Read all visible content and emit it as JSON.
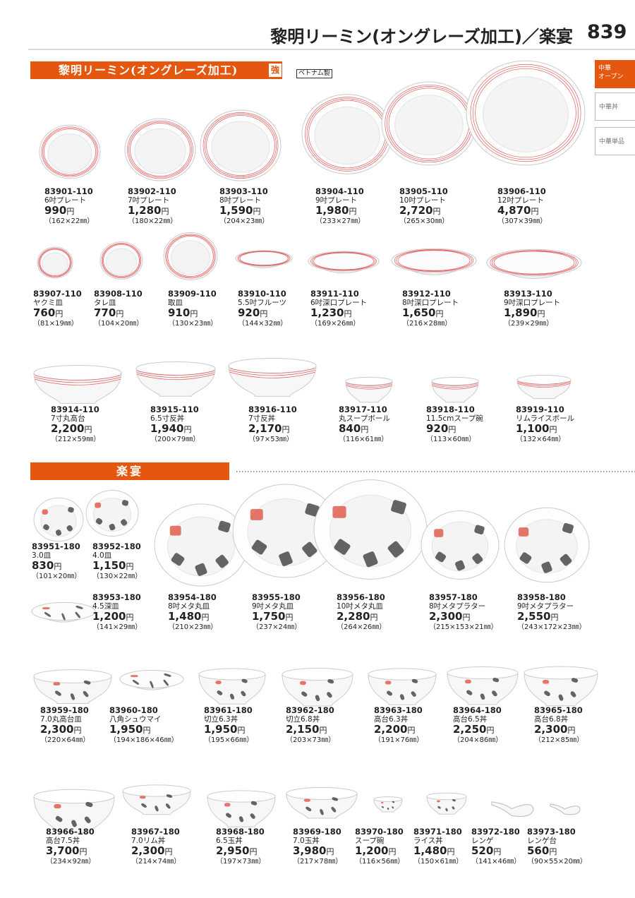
{
  "header": {
    "title": "黎明リーミン(オングレーズ加工)／楽宴",
    "page": "839"
  },
  "tabs": [
    [
      "中華",
      "オープン"
    ],
    [
      "中華丼"
    ],
    [
      "中華単品"
    ]
  ],
  "sections": [
    {
      "title": "黎明リーミン(オングレーズ加工)",
      "badge": "強",
      "origin": "ベトナム製",
      "items": [
        {
          "code": "83901-110",
          "name": "6吋プレート",
          "price": "990",
          "unit": "円",
          "size": "（162×22㎜）"
        },
        {
          "code": "83902-110",
          "name": "7吋プレート",
          "price": "1,280",
          "unit": "円",
          "size": "（180×22㎜）"
        },
        {
          "code": "83903-110",
          "name": "8吋プレート",
          "price": "1,590",
          "unit": "円",
          "size": "（204×23㎜）"
        },
        {
          "code": "83904-110",
          "name": "9吋プレート",
          "price": "1,980",
          "unit": "円",
          "size": "（233×27㎜）"
        },
        {
          "code": "83905-110",
          "name": "10吋プレート",
          "price": "2,720",
          "unit": "円",
          "size": "（265×30㎜）"
        },
        {
          "code": "83906-110",
          "name": "12吋プレート",
          "price": "4,870",
          "unit": "円",
          "size": "（307×39㎜）"
        },
        {
          "code": "83907-110",
          "name": "ヤクミ皿",
          "price": "760",
          "unit": "円",
          "size": "（81×19㎜）"
        },
        {
          "code": "83908-110",
          "name": "タレ皿",
          "price": "770",
          "unit": "円",
          "size": "（104×20㎜）"
        },
        {
          "code": "83909-110",
          "name": "取皿",
          "price": "910",
          "unit": "円",
          "size": "（130×23㎜）"
        },
        {
          "code": "83910-110",
          "name": "5.5吋フルーツ",
          "price": "920",
          "unit": "円",
          "size": "（144×32㎜）"
        },
        {
          "code": "83911-110",
          "name": "6吋深口プレート",
          "price": "1,230",
          "unit": "円",
          "size": "（169×26㎜）"
        },
        {
          "code": "83912-110",
          "name": "8吋深口プレート",
          "price": "1,650",
          "unit": "円",
          "size": "（216×28㎜）"
        },
        {
          "code": "83913-110",
          "name": "9吋深口プレート",
          "price": "1,890",
          "unit": "円",
          "size": "（239×29㎜）"
        },
        {
          "code": "83914-110",
          "name": "7寸丸高台",
          "price": "2,200",
          "unit": "円",
          "size": "（212×59㎜）"
        },
        {
          "code": "83915-110",
          "name": "6.5寸反丼",
          "price": "1,940",
          "unit": "円",
          "size": "（200×79㎜）"
        },
        {
          "code": "83916-110",
          "name": "7寸反丼",
          "price": "2,170",
          "unit": "円",
          "size": "（97×53㎜）"
        },
        {
          "code": "83917-110",
          "name": "丸スープボール",
          "price": "840",
          "unit": "円",
          "size": "（116×61㎜）"
        },
        {
          "code": "83918-110",
          "name": "11.5cmスープ碗",
          "price": "920",
          "unit": "円",
          "size": "（113×60㎜）"
        },
        {
          "code": "83919-110",
          "name": "リムライスボール",
          "price": "1,100",
          "unit": "円",
          "size": "（132×64㎜）"
        }
      ]
    },
    {
      "title": "楽宴",
      "items": [
        {
          "code": "83951-180",
          "name": "3.0皿",
          "price": "830",
          "unit": "円",
          "size": "（101×20㎜）"
        },
        {
          "code": "83952-180",
          "name": "4.0皿",
          "price": "1,150",
          "unit": "円",
          "size": "（130×22㎜）"
        },
        {
          "code": "83953-180",
          "name": "4.5深皿",
          "price": "1,200",
          "unit": "円",
          "size": "（141×29㎜）"
        },
        {
          "code": "83954-180",
          "name": "8吋メタ丸皿",
          "price": "1,480",
          "unit": "円",
          "size": "（210×23㎜）"
        },
        {
          "code": "83955-180",
          "name": "9吋メタ丸皿",
          "price": "1,750",
          "unit": "円",
          "size": "（237×24㎜）"
        },
        {
          "code": "83956-180",
          "name": "10吋メタ丸皿",
          "price": "2,280",
          "unit": "円",
          "size": "（264×26㎜）"
        },
        {
          "code": "83957-180",
          "name": "8吋メタプラター",
          "price": "2,300",
          "unit": "円",
          "size": "（215×153×21㎜）"
        },
        {
          "code": "83958-180",
          "name": "9吋メタプラター",
          "price": "2,550",
          "unit": "円",
          "size": "（243×172×23㎜）"
        },
        {
          "code": "83959-180",
          "name": "7.0丸高台皿",
          "price": "2,300",
          "unit": "円",
          "size": "（220×64㎜）"
        },
        {
          "code": "83960-180",
          "name": "八角シュウマイ",
          "price": "1,950",
          "unit": "円",
          "size": "（194×186×46㎜）"
        },
        {
          "code": "83961-180",
          "name": "切立6.3丼",
          "price": "1,950",
          "unit": "円",
          "size": "（195×66㎜）"
        },
        {
          "code": "83962-180",
          "name": "切立6.8丼",
          "price": "2,150",
          "unit": "円",
          "size": "（203×73㎜）"
        },
        {
          "code": "83963-180",
          "name": "高台6.3丼",
          "price": "2,200",
          "unit": "円",
          "size": "（191×76㎜）"
        },
        {
          "code": "83964-180",
          "name": "高台6.5丼",
          "price": "2,250",
          "unit": "円",
          "size": "（204×86㎜）"
        },
        {
          "code": "83965-180",
          "name": "高台6.8丼",
          "price": "2,300",
          "unit": "円",
          "size": "（212×85㎜）"
        },
        {
          "code": "83966-180",
          "name": "高台7.5丼",
          "price": "3,700",
          "unit": "円",
          "size": "（234×92㎜）"
        },
        {
          "code": "83967-180",
          "name": "7.0リム丼",
          "price": "2,300",
          "unit": "円",
          "size": "（214×74㎜）"
        },
        {
          "code": "83968-180",
          "name": "6.5玉丼",
          "price": "2,950",
          "unit": "円",
          "size": "（197×73㎜）"
        },
        {
          "code": "83969-180",
          "name": "7.0玉丼",
          "price": "3,980",
          "unit": "円",
          "size": "（217×78㎜）"
        },
        {
          "code": "83970-180",
          "name": "スープ碗",
          "price": "1,200",
          "unit": "円",
          "size": "（116×56㎜）"
        },
        {
          "code": "83971-180",
          "name": "ライス丼",
          "price": "1,480",
          "unit": "円",
          "size": "（150×61㎜）"
        },
        {
          "code": "83972-180",
          "name": "レンゲ",
          "price": "520",
          "unit": "円",
          "size": "（141×46㎜）"
        },
        {
          "code": "83973-180",
          "name": "レンゲ台",
          "price": "560",
          "unit": "円",
          "size": "（90×55×20㎜）"
        }
      ]
    }
  ]
}
